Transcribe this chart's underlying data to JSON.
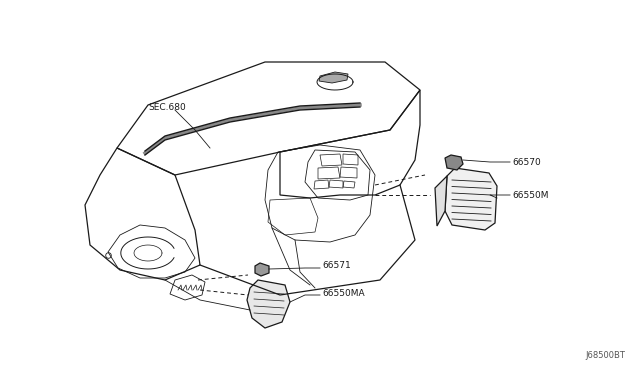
{
  "background_color": "#ffffff",
  "line_color": "#1a1a1a",
  "text_color": "#1a1a1a",
  "fig_width": 6.4,
  "fig_height": 3.72,
  "dpi": 100,
  "watermark": "J68500BT",
  "label_sec680": "SEC.680",
  "label_66570": "66570",
  "label_66550M": "66550M",
  "label_66571": "66571",
  "label_66550MA": "66550MA",
  "font_size_labels": 6.5,
  "font_size_watermark": 6.0
}
